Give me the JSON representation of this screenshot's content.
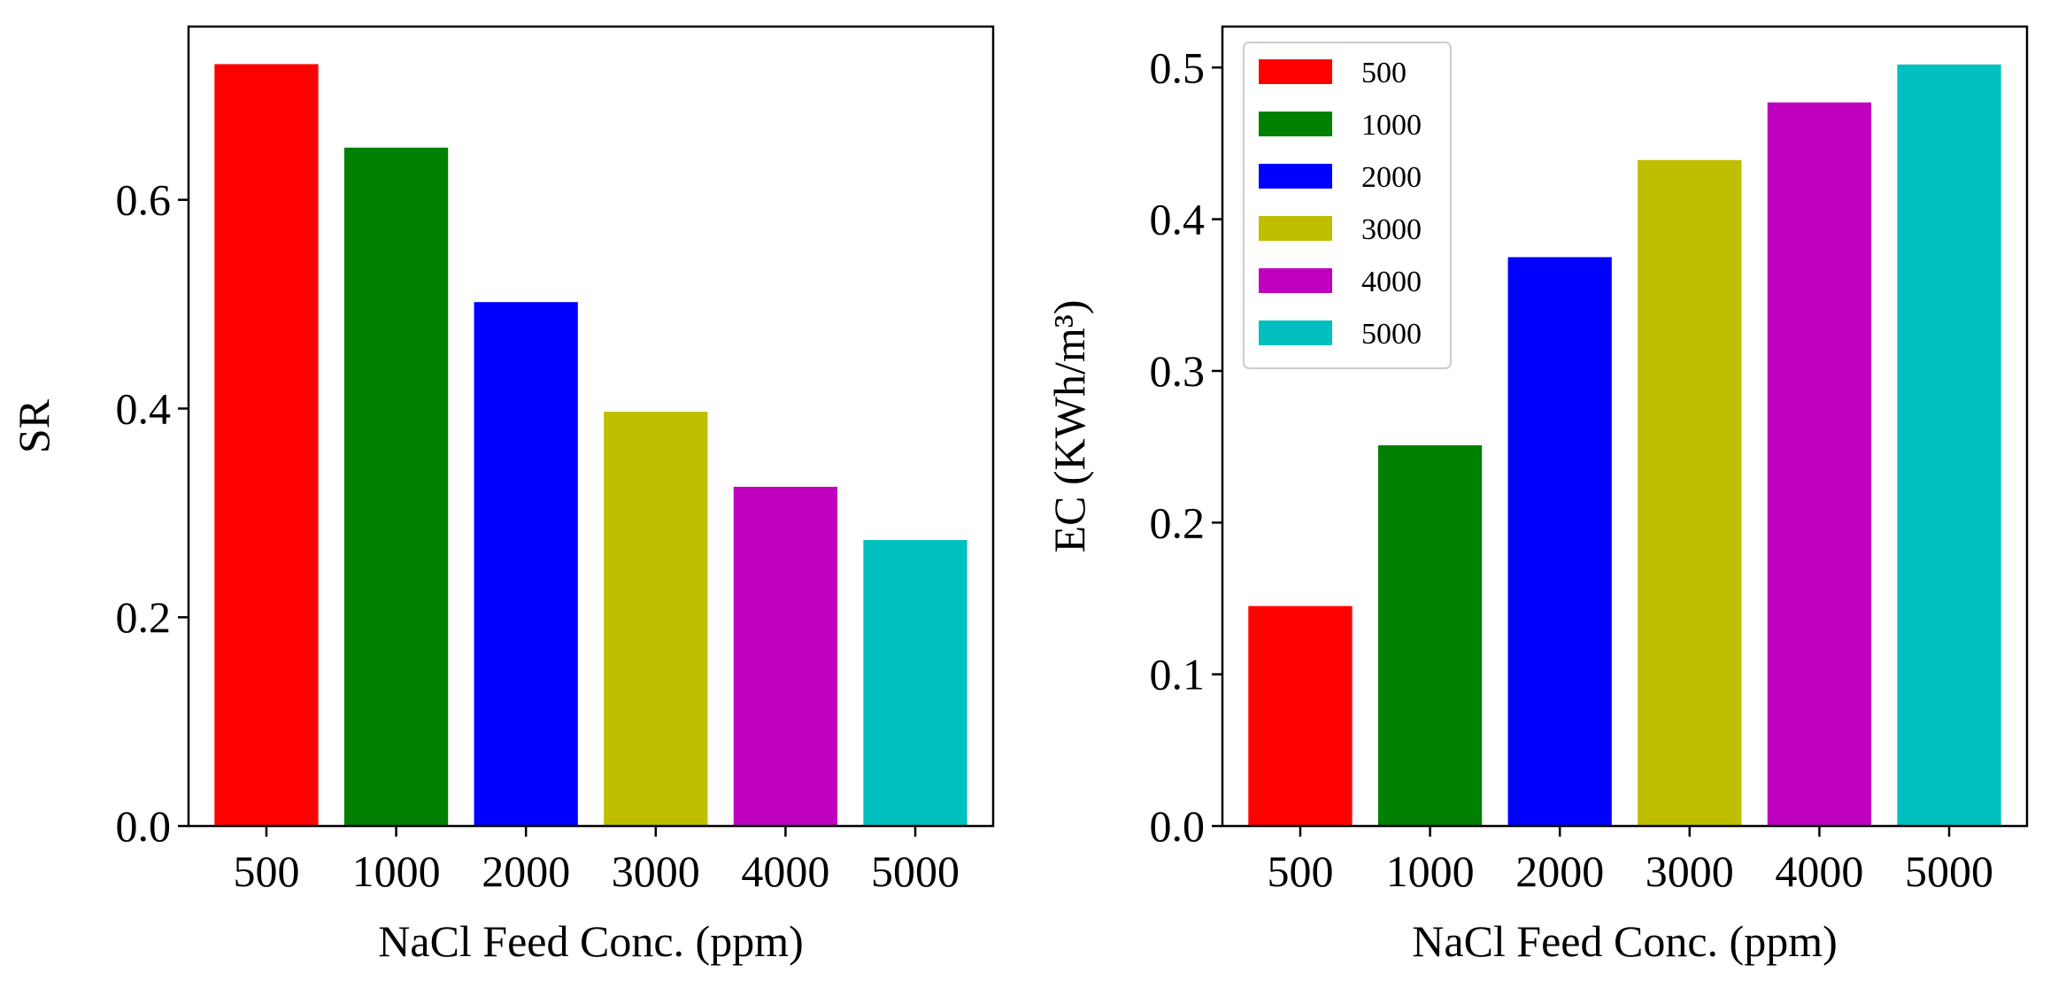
{
  "chart_data": [
    {
      "type": "bar",
      "categories": [
        "500",
        "1000",
        "2000",
        "3000",
        "4000",
        "5000"
      ],
      "values": [
        0.73,
        0.65,
        0.502,
        0.397,
        0.325,
        0.274
      ],
      "colors": [
        "#ff0000",
        "#008000",
        "#0000ff",
        "#bfbf00",
        "#bf00bf",
        "#00bfbf"
      ],
      "xlabel": "NaCl Feed Conc. (ppm)",
      "ylabel": "SR",
      "ylim": [
        0,
        0.766
      ],
      "yticks": [
        "0.0",
        "0.2",
        "0.4",
        "0.6"
      ],
      "grid": false,
      "legend": null
    },
    {
      "type": "bar",
      "categories": [
        "500",
        "1000",
        "2000",
        "3000",
        "4000",
        "5000"
      ],
      "values": [
        0.145,
        0.251,
        0.375,
        0.439,
        0.477,
        0.502
      ],
      "colors": [
        "#ff0000",
        "#008000",
        "#0000ff",
        "#bfbf00",
        "#bf00bf",
        "#00bfbf"
      ],
      "xlabel": "NaCl Feed Conc. (ppm)",
      "ylabel": "EC (KWh/m³)",
      "ylim": [
        0,
        0.527
      ],
      "yticks": [
        "0.0",
        "0.1",
        "0.2",
        "0.3",
        "0.4",
        "0.5"
      ],
      "grid": false,
      "legend": {
        "placement": "top-left",
        "entries": [
          "500",
          "1000",
          "2000",
          "3000",
          "4000",
          "5000"
        ]
      }
    }
  ]
}
